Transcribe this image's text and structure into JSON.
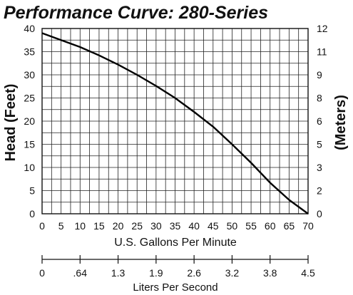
{
  "chart_data": {
    "type": "line",
    "title": "Performance Curve: 280-Series",
    "xlabel": "U.S. Gallons Per Minute",
    "ylabel": "Head (Feet)",
    "y2label": "(Meters)",
    "x2label": "Liters Per Second",
    "xlim": [
      0,
      70
    ],
    "ylim": [
      0,
      40
    ],
    "x_ticks": [
      0,
      5,
      10,
      15,
      20,
      25,
      30,
      35,
      40,
      45,
      50,
      55,
      60,
      65,
      70
    ],
    "y_ticks": [
      0,
      5,
      10,
      15,
      20,
      25,
      30,
      35,
      40
    ],
    "y2_ticks": [
      {
        "label": "0",
        "feet": 0
      },
      {
        "label": "2",
        "feet": 5
      },
      {
        "label": "3",
        "feet": 10
      },
      {
        "label": "5",
        "feet": 15
      },
      {
        "label": "6",
        "feet": 20
      },
      {
        "label": "8",
        "feet": 25
      },
      {
        "label": "9",
        "feet": 30
      },
      {
        "label": "11",
        "feet": 35
      },
      {
        "label": "12",
        "feet": 40
      }
    ],
    "x2_ticks": [
      {
        "label": "0",
        "gpm": 0
      },
      {
        "label": ".64",
        "gpm": 10
      },
      {
        "label": "1.3",
        "gpm": 20
      },
      {
        "label": "1.9",
        "gpm": 30
      },
      {
        "label": "2.6",
        "gpm": 40
      },
      {
        "label": "3.2",
        "gpm": 50
      },
      {
        "label": "3.8",
        "gpm": 60
      },
      {
        "label": "4.5",
        "gpm": 70
      }
    ],
    "grid": true,
    "series": [
      {
        "x": [
          0,
          5,
          10,
          15,
          20,
          25,
          30,
          35,
          40,
          45,
          50,
          55,
          60,
          65,
          70
        ],
        "y": [
          39,
          37.5,
          36,
          34.2,
          32.2,
          30,
          27.6,
          25,
          22,
          18.8,
          15,
          11,
          6.7,
          3,
          0
        ]
      }
    ]
  }
}
